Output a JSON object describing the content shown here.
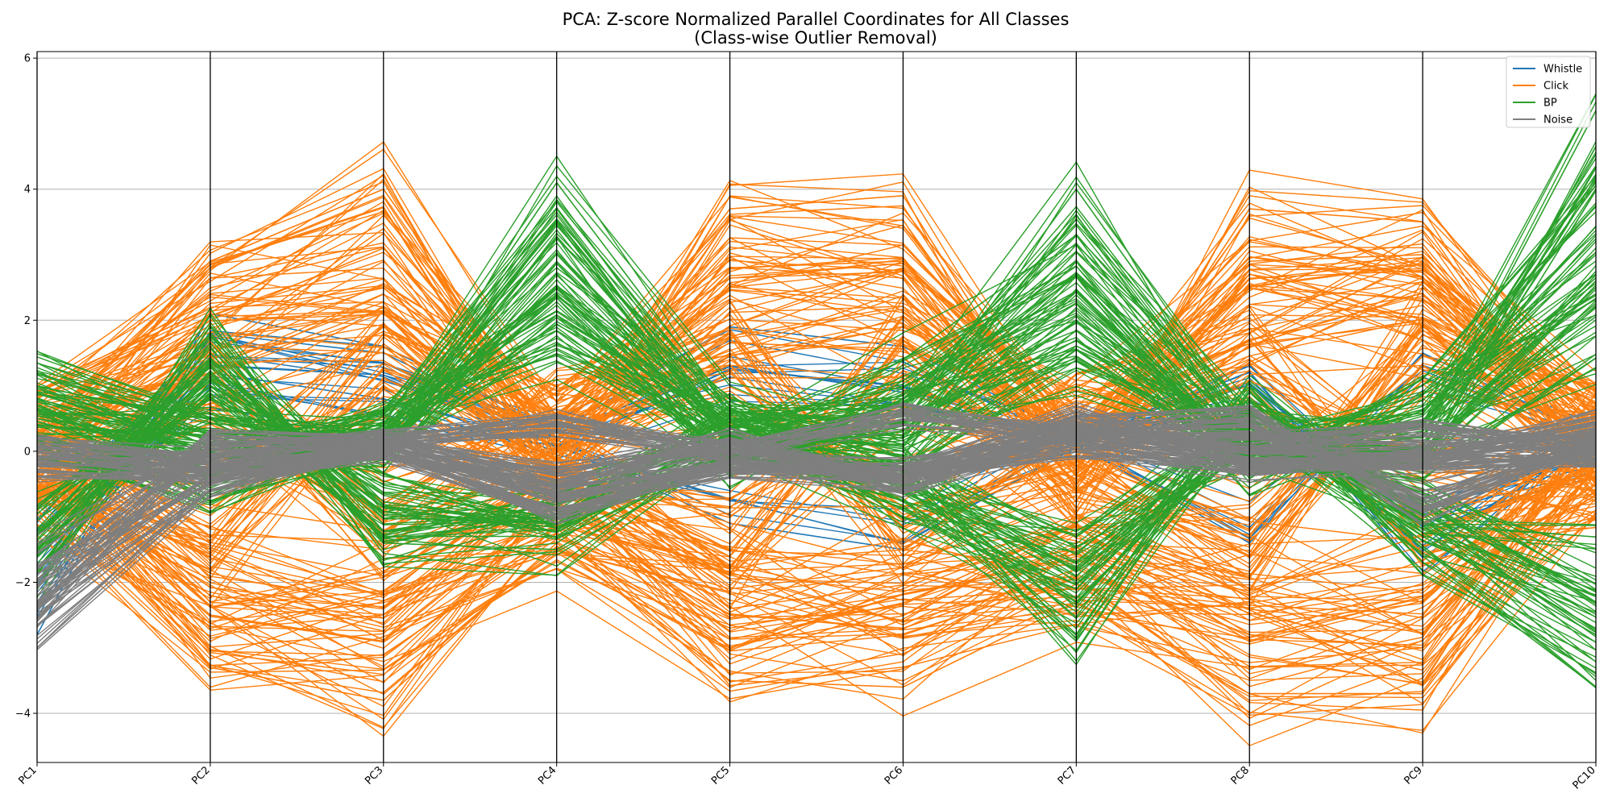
{
  "chart_data": {
    "type": "parallel-coordinates",
    "title_line1": "PCA: Z-score Normalized Parallel Coordinates for All Classes",
    "title_line2": "(Class-wise Outlier Removal)",
    "xlabel": "",
    "ylabel": "",
    "axes": [
      "PC1",
      "PC2",
      "PC3",
      "PC4",
      "PC5",
      "PC6",
      "PC7",
      "PC8",
      "PC9",
      "PC10"
    ],
    "ylim": [
      -4.75,
      6.1
    ],
    "yticks": [
      -4,
      -2,
      0,
      2,
      4,
      6
    ],
    "ytick_labels": [
      "−4",
      "−2",
      "0",
      "2",
      "4",
      "6"
    ],
    "grid": "horizontal",
    "legend_position": "top-right",
    "series": [
      {
        "name": "Whistle",
        "color": "#1f77b4",
        "representative_profiles": [
          [
            -2.8,
            2.1,
            1.6,
            0.3,
            1.9,
            1.6,
            0.2,
            1.2,
            -1.9,
            0.4
          ],
          [
            -1.2,
            1.8,
            1.5,
            0.2,
            1.3,
            0.9,
            0.1,
            -1.4,
            1.5,
            0.2
          ],
          [
            -2.3,
            1.2,
            0.8,
            0.1,
            -1.1,
            -1.5,
            0.3,
            1.3,
            -1.2,
            -0.3
          ]
        ]
      },
      {
        "name": "Click",
        "color": "#ff7f0e",
        "representative_profiles": [
          [
            0.2,
            2.9,
            4.0,
            0.2,
            3.7,
            3.9,
            -0.3,
            3.7,
            3.5,
            0.5
          ],
          [
            -0.5,
            -3.3,
            -3.8,
            -1.4,
            -3.5,
            -3.6,
            -2.3,
            -3.7,
            -3.7,
            -0.2
          ],
          [
            0.1,
            2.0,
            3.1,
            0.3,
            2.8,
            2.9,
            0.2,
            2.9,
            3.0,
            0.1
          ],
          [
            -0.2,
            -2.5,
            -2.9,
            -0.8,
            -2.5,
            -2.7,
            -1.8,
            -2.8,
            -3.0,
            0.3
          ],
          [
            0.0,
            1.2,
            -1.5,
            0.5,
            1.8,
            -1.6,
            0.4,
            1.7,
            -1.2,
            -0.4
          ],
          [
            0.1,
            -1.5,
            1.8,
            -0.4,
            -1.8,
            1.7,
            -0.6,
            -1.6,
            1.9,
            0.2
          ]
        ]
      },
      {
        "name": "BP",
        "color": "#2ca02c",
        "representative_profiles": [
          [
            1.2,
            0.3,
            0.2,
            4.1,
            0.6,
            0.4,
            4.0,
            0.3,
            0.2,
            5.2
          ],
          [
            -2.0,
            1.9,
            -1.4,
            -1.5,
            0.1,
            -0.5,
            -2.9,
            0.9,
            -1.6,
            -3.6
          ],
          [
            0.8,
            0.1,
            0.2,
            3.5,
            -0.1,
            1.4,
            3.3,
            -0.3,
            1.1,
            4.1
          ],
          [
            -1.8,
            1.5,
            -1.3,
            -1.3,
            0.4,
            -0.9,
            -2.3,
            0.4,
            -1.3,
            -2.8
          ],
          [
            0.4,
            -0.6,
            0.3,
            2.5,
            0.2,
            0.1,
            2.0,
            0.1,
            0.0,
            2.6
          ]
        ]
      },
      {
        "name": "Noise",
        "color": "#7f7f7f",
        "representative_profiles": [
          [
            -3.0,
            -0.6,
            0.1,
            -1.1,
            -0.2,
            -0.4,
            0.6,
            -0.1,
            -0.1,
            0.5
          ],
          [
            0.1,
            -0.2,
            0.2,
            0.5,
            0.0,
            0.7,
            0.3,
            0.2,
            0.4,
            0.1
          ],
          [
            -0.3,
            -0.4,
            0.0,
            -0.9,
            -0.3,
            -0.5,
            0.1,
            -0.3,
            -0.2,
            -0.1
          ],
          [
            -2.6,
            0.2,
            0.2,
            -0.5,
            0.2,
            -0.6,
            0.4,
            0.6,
            -1.0,
            0.2
          ]
        ]
      }
    ]
  }
}
